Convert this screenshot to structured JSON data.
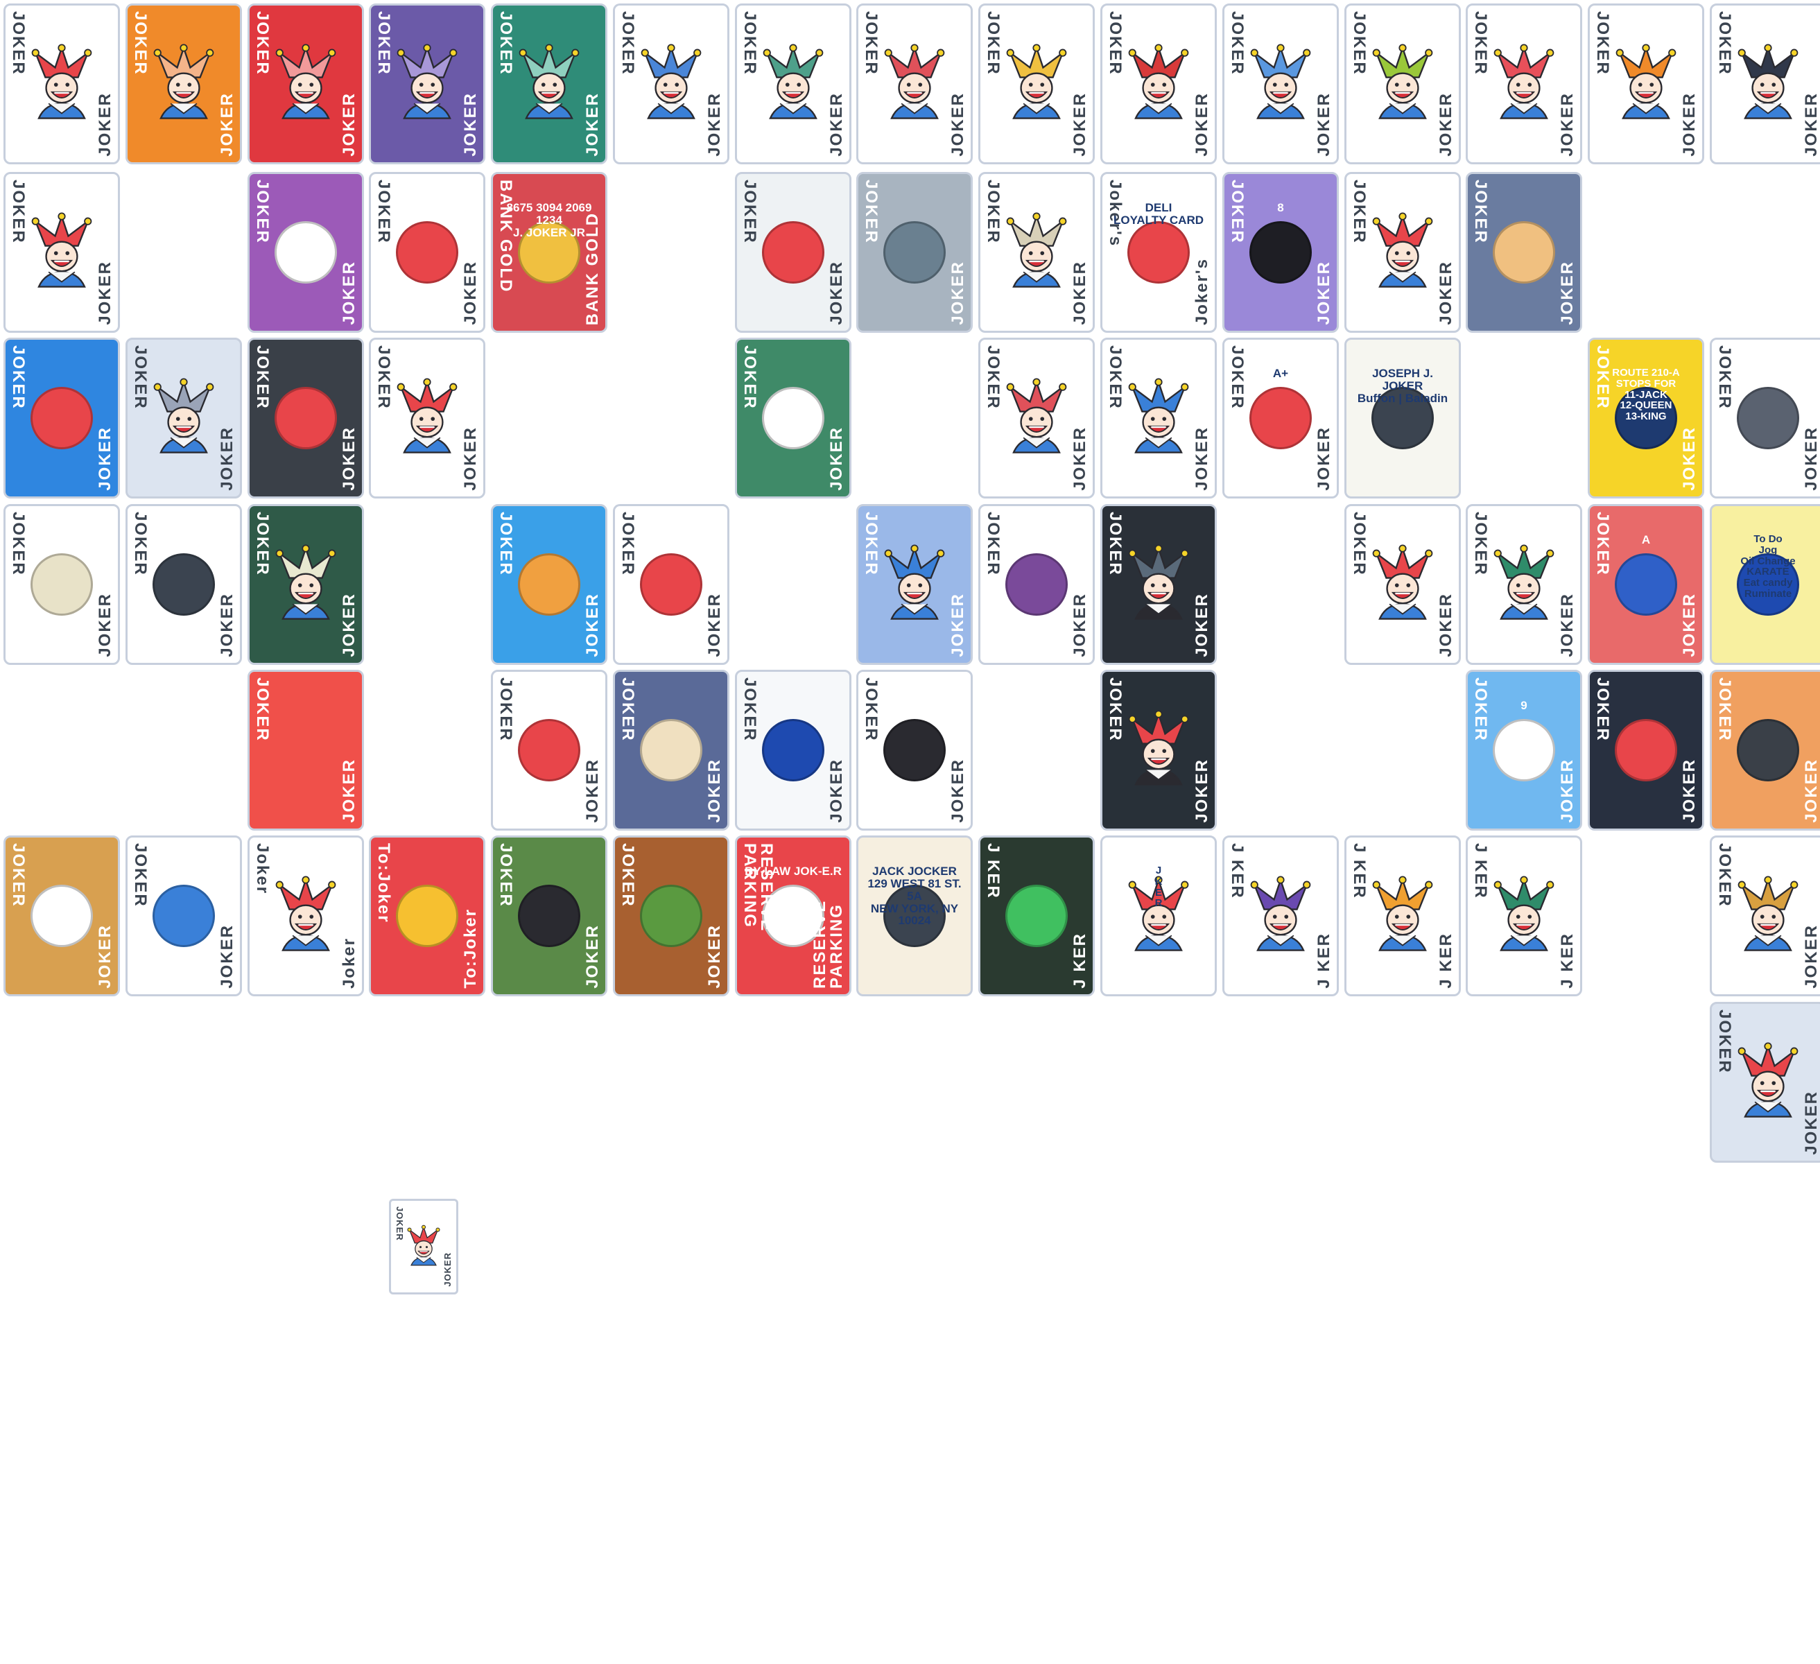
{
  "palette": {
    "card_border": "#c7cfdd",
    "red": "#e8454a",
    "blue": "#3f7fd6",
    "orange": "#f08a2a",
    "yellow": "#f6d428",
    "green": "#2f8c6a",
    "purple": "#6b4aa5",
    "dark": "#3b4450"
  },
  "cards": [
    {
      "theme": "classic-white",
      "bg": "#ffffff",
      "label": "JOKER",
      "jester": "#e8454a",
      "icon": "jester-icon"
    },
    {
      "theme": "orange-back",
      "bg": "#f08a2a",
      "label": "JOKER",
      "jester": "#f4b48a",
      "icon": "jester-icon"
    },
    {
      "theme": "red-hearts-back",
      "bg": "#e0383f",
      "label": "JOKER",
      "jester": "#f29a9a",
      "icon": "jester-icon"
    },
    {
      "theme": "purple-spades-back",
      "bg": "#6b5aa8",
      "label": "JOKER",
      "jester": "#a898d8",
      "icon": "jester-icon"
    },
    {
      "theme": "green-clubs-back",
      "bg": "#2f8c78",
      "label": "JOKER",
      "jester": "#8fd0bf",
      "icon": "jester-icon"
    },
    {
      "theme": "blue-jester",
      "bg": "#ffffff",
      "label": "JOKER",
      "jester": "#4a86d8",
      "icon": "jester-icon"
    },
    {
      "theme": "green-jester",
      "bg": "#ffffff",
      "label": "JOKER",
      "jester": "#4ea08a",
      "icon": "jester-icon"
    },
    {
      "theme": "red-jester-cards",
      "bg": "#ffffff",
      "label": "JOKER",
      "jester": "#e0515a",
      "icon": "jester-icon"
    },
    {
      "theme": "yellow-jester-cards",
      "bg": "#ffffff",
      "label": "JOKER",
      "jester": "#f0c040",
      "icon": "jester-icon"
    },
    {
      "theme": "red-hand-fan",
      "bg": "#ffffff",
      "label": "JOKER",
      "jester": "#d83a3a",
      "icon": "jester-icon"
    },
    {
      "theme": "blue-grin",
      "bg": "#ffffff",
      "label": "JOKER",
      "jester": "#5a98e0",
      "icon": "jester-icon"
    },
    {
      "theme": "lime-grin",
      "bg": "#ffffff",
      "label": "JOKER",
      "jester": "#9ac83a",
      "icon": "jester-icon"
    },
    {
      "theme": "rainbow-grin",
      "bg": "#ffffff",
      "label": "JOKER",
      "jester": "#e8505a",
      "icon": "jester-icon"
    },
    {
      "theme": "sunset-grin",
      "bg": "#ffffff",
      "label": "JOKER",
      "jester": "#f08a2a",
      "icon": "jester-icon"
    },
    {
      "theme": "dark-grin",
      "bg": "#ffffff",
      "label": "JOKER",
      "jester": "#30384a",
      "icon": "jester-icon"
    },
    {
      "theme": "cracked-jester",
      "bg": "#ffffff",
      "label": "JOKER",
      "jester": "#e8454a",
      "icon": "jester-icon"
    },
    {
      "theme": "purple-swirl-hand",
      "bg": "#9c5ab8",
      "label": "JOKER",
      "jester": "#ffffff",
      "icon": "hand-icon"
    },
    {
      "theme": "mime",
      "bg": "#ffffff",
      "label": "JOKER",
      "jester": "#e8454a",
      "icon": "mime-icon"
    },
    {
      "theme": "bank-card",
      "bg": "#d84a52",
      "label": "BANK GOLD",
      "jester": "#f0c040",
      "icon": "bank-card-icon",
      "text_lines": [
        "8675 3094 2069 1234",
        "J. JOKER JR"
      ]
    },
    {
      "theme": "windsock",
      "bg": "#eef2f4",
      "label": "JOKER",
      "jester": "#e8454a",
      "icon": "windsock-icon"
    },
    {
      "theme": "wave-rock",
      "bg": "#a8b4c0",
      "label": "JOKER",
      "jester": "#6a8090",
      "icon": "wave-icon"
    },
    {
      "theme": "ghost-jester",
      "bg": "#ffffff",
      "label": "JOKER",
      "jester": "#d8d0b8",
      "icon": "jester-icon"
    },
    {
      "theme": "deli-card",
      "bg": "#ffffff",
      "label": "Joker's",
      "jester": "#e8454a",
      "icon": "deli-icon",
      "text_lines": [
        "DELI",
        "LOYALTY CARD"
      ]
    },
    {
      "theme": "eight-ball",
      "bg": "#9a88d8",
      "label": "JOKER",
      "jester": "#1e1e24",
      "icon": "eight-ball-icon",
      "text_lines": [
        "8"
      ]
    },
    {
      "theme": "paint-swatch",
      "bg": "#ffffff",
      "label": "JOKER",
      "jester": "#e8454a",
      "icon": "jester-icon"
    },
    {
      "theme": "mountain-sunset",
      "bg": "#6a7ca0",
      "label": "JOKER",
      "jester": "#f0c080",
      "icon": "mountain-icon"
    },
    {
      "theme": "golden-ratio",
      "bg": "#2f86e0",
      "label": "JOKER",
      "jester": "#e8454a",
      "icon": "spiral-icon"
    },
    {
      "theme": "glass-jester",
      "bg": "#dce4f0",
      "label": "JOKER",
      "jester": "#9aa4b8",
      "icon": "jester-icon"
    },
    {
      "theme": "fire-demon",
      "bg": "#3a4048",
      "label": "JOKER",
      "jester": "#e8454a",
      "icon": "flame-icon"
    },
    {
      "theme": "splash-jester",
      "bg": "#ffffff",
      "label": "JOKER",
      "jester": "#e8454a",
      "icon": "jester-icon"
    },
    {
      "theme": "green-felt-solitaire",
      "bg": "#3f8a68",
      "label": "JOKER",
      "jester": "#ffffff",
      "icon": "cards-icon"
    },
    {
      "theme": "red-jester-2",
      "bg": "#ffffff",
      "label": "JOKER",
      "jester": "#e0515a",
      "icon": "jester-icon"
    },
    {
      "theme": "blue-jester-2",
      "bg": "#ffffff",
      "label": "JOKER",
      "jester": "#3a80d8",
      "icon": "jester-icon"
    },
    {
      "theme": "graduate",
      "bg": "#ffffff",
      "label": "JOKER",
      "jester": "#e8454a",
      "icon": "graduation-icon",
      "text_lines": [
        "A+"
      ]
    },
    {
      "theme": "business-card",
      "bg": "#f6f6f0",
      "label": "",
      "jester": "#3b4450",
      "icon": "business-card-icon",
      "text_lines": [
        "JOSEPH J. JOKER",
        "Buffon | Baladin"
      ]
    },
    {
      "theme": "bus-sign",
      "bg": "#f6d428",
      "label": "JOKER",
      "jester": "#1e3a70",
      "icon": "bus-icon",
      "text_lines": [
        "ROUTE 210-A",
        "STOPS FOR",
        "11-JACK",
        "12-QUEEN",
        "13-KING"
      ]
    },
    {
      "theme": "astronaut",
      "bg": "#ffffff",
      "label": "JOKER",
      "jester": "#5a6270",
      "icon": "astronaut-icon"
    },
    {
      "theme": "egg",
      "bg": "#ffffff",
      "label": "JOKER",
      "jester": "#e8e2c8",
      "icon": "egg-icon"
    },
    {
      "theme": "prisoner",
      "bg": "#ffffff",
      "label": "JOKER",
      "jester": "#3b4450",
      "icon": "prisoner-icon"
    },
    {
      "theme": "sketch-jester",
      "bg": "#2f5a48",
      "label": "JOKER",
      "jester": "#e8e8d0",
      "icon": "jester-icon"
    },
    {
      "theme": "ice-cream",
      "bg": "#3aa0e8",
      "label": "JOKER",
      "jester": "#f0a040",
      "icon": "ice-cream-icon"
    },
    {
      "theme": "dna",
      "bg": "#ffffff",
      "label": "JOKER",
      "jester": "#e8454a",
      "icon": "dna-icon"
    },
    {
      "theme": "striped-blue-jester",
      "bg": "#9ab8e8",
      "label": "JOKER",
      "jester": "#3a80d8",
      "icon": "jester-icon"
    },
    {
      "theme": "third-eye",
      "bg": "#ffffff",
      "label": "JOKER",
      "jester": "#7a4a9a",
      "icon": "third-eye-icon"
    },
    {
      "theme": "space-jester",
      "bg": "#2a3038",
      "label": "JOKER",
      "jester": "#5a6a7a",
      "icon": "jester-icon"
    },
    {
      "theme": "headless-red",
      "bg": "#ffffff",
      "label": "JOKER",
      "jester": "#e8454a",
      "icon": "jester-icon"
    },
    {
      "theme": "green-jester-2",
      "bg": "#ffffff",
      "label": "JOKER",
      "jester": "#2f8c6a",
      "icon": "jester-icon"
    },
    {
      "theme": "a-train",
      "bg": "#e86a6a",
      "label": "JOKER",
      "jester": "#2f60c8",
      "icon": "a-icon",
      "text_lines": [
        "A"
      ]
    },
    {
      "theme": "todo-note",
      "bg": "#f8f0a0",
      "label": "",
      "jester": "#1e4ab0",
      "icon": "todo-icon",
      "text_lines": [
        "To Do",
        "Jog",
        "Oil Change",
        "KARATE",
        "Eat candy",
        "Ruminate"
      ]
    },
    {
      "theme": "red-blank",
      "bg": "#f0504a",
      "label": "JOKER",
      "jester": "#f0504a",
      "icon": ""
    },
    {
      "theme": "pixel-jester",
      "bg": "#ffffff",
      "label": "JOKER",
      "jester": "#e8454a",
      "icon": "pixel-jester-icon"
    },
    {
      "theme": "theater-flame",
      "bg": "#5a6a98",
      "label": "JOKER",
      "jester": "#f0e0c0",
      "icon": "flame-icon"
    },
    {
      "theme": "joker-logo",
      "bg": "#f6f8fa",
      "label": "JOKER",
      "jester": "#1e4ab0",
      "icon": "logo-icon"
    },
    {
      "theme": "vampire",
      "bg": "#ffffff",
      "label": "JOKER",
      "jester": "#2a2a30",
      "icon": "vampire-icon"
    },
    {
      "theme": "dark-neon-jester",
      "bg": "#283038",
      "label": "JOKER",
      "jester": "#e8454a",
      "icon": "jester-icon"
    },
    {
      "theme": "cloud-nine",
      "bg": "#70b8f0",
      "label": "JOKER",
      "jester": "#ffffff",
      "icon": "cloud-icon",
      "text_lines": [
        "9"
      ]
    },
    {
      "theme": "rocket",
      "bg": "#283040",
      "label": "JOKER",
      "jester": "#e8454a",
      "icon": "rocket-icon"
    },
    {
      "theme": "monolith",
      "bg": "#f0a060",
      "label": "JOKER",
      "jester": "#3a4048",
      "icon": "monolith-icon"
    },
    {
      "theme": "leopard-mask",
      "bg": "#d8a050",
      "label": "JOKER",
      "jester": "#ffffff",
      "icon": "mask-icon"
    },
    {
      "theme": "luchador",
      "bg": "#ffffff",
      "label": "JOKER",
      "jester": "#3a80d8",
      "icon": "luchador-icon"
    },
    {
      "theme": "polaroid-jester",
      "bg": "#ffffff",
      "label": "Joker",
      "jester": "#e8454a",
      "icon": "jester-icon"
    },
    {
      "theme": "gift-box",
      "bg": "#e8454a",
      "label": "To:Joker",
      "jester": "#f6c030",
      "icon": "gift-icon"
    },
    {
      "theme": "bean",
      "bg": "#5a8a48",
      "label": "JOKER",
      "jester": "#2a2a30",
      "icon": "bean-icon"
    },
    {
      "theme": "vine-bark",
      "bg": "#a86030",
      "label": "JOKER",
      "jester": "#5a9a40",
      "icon": "vine-icon"
    },
    {
      "theme": "reserve-parking",
      "bg": "#e8454a",
      "label": "RESERVE PARKING",
      "jester": "#ffffff",
      "icon": "arrow-icon",
      "text_lines": [
        "BY-LAW JOK-E.R"
      ]
    },
    {
      "theme": "air-mail",
      "bg": "#f6efe0",
      "label": "",
      "jester": "#3b4450",
      "icon": "envelope-icon",
      "text_lines": [
        "JACK JOCKER",
        "129 WEST 81 ST. 5A",
        "NEW YORK, NY 10024"
      ]
    },
    {
      "theme": "stock-chart",
      "bg": "#2a3a30",
      "label": "J KER",
      "jester": "#40c060",
      "icon": "chart-icon"
    },
    {
      "theme": "jack-in-box",
      "bg": "#ffffff",
      "label": "",
      "jester": "#e8454a",
      "icon": "jester-icon",
      "text_lines": [
        "J",
        "K",
        "E",
        "R"
      ]
    },
    {
      "theme": "turban-jester",
      "bg": "#ffffff",
      "label": "J KER",
      "jester": "#6a4ab0",
      "icon": "jester-icon"
    },
    {
      "theme": "pattern-jester-1",
      "bg": "#ffffff",
      "label": "J KER",
      "jester": "#f0a030",
      "icon": "jester-icon"
    },
    {
      "theme": "pattern-jester-2",
      "bg": "#ffffff",
      "label": "J KER",
      "jester": "#2f8c6a",
      "icon": "jester-icon"
    },
    {
      "theme": "gold-jester",
      "bg": "#ffffff",
      "label": "JOKER",
      "jester": "#d8a040",
      "icon": "jester-icon"
    },
    {
      "theme": "glass-jester-2",
      "bg": "#dce4f0",
      "label": "JOKER",
      "jester": "#e8454a",
      "icon": "jester-icon"
    },
    {
      "theme": "tiny-jester",
      "bg": "#ffffff",
      "label": "JOKER",
      "jester": "#e8454a",
      "icon": "jester-icon"
    }
  ]
}
